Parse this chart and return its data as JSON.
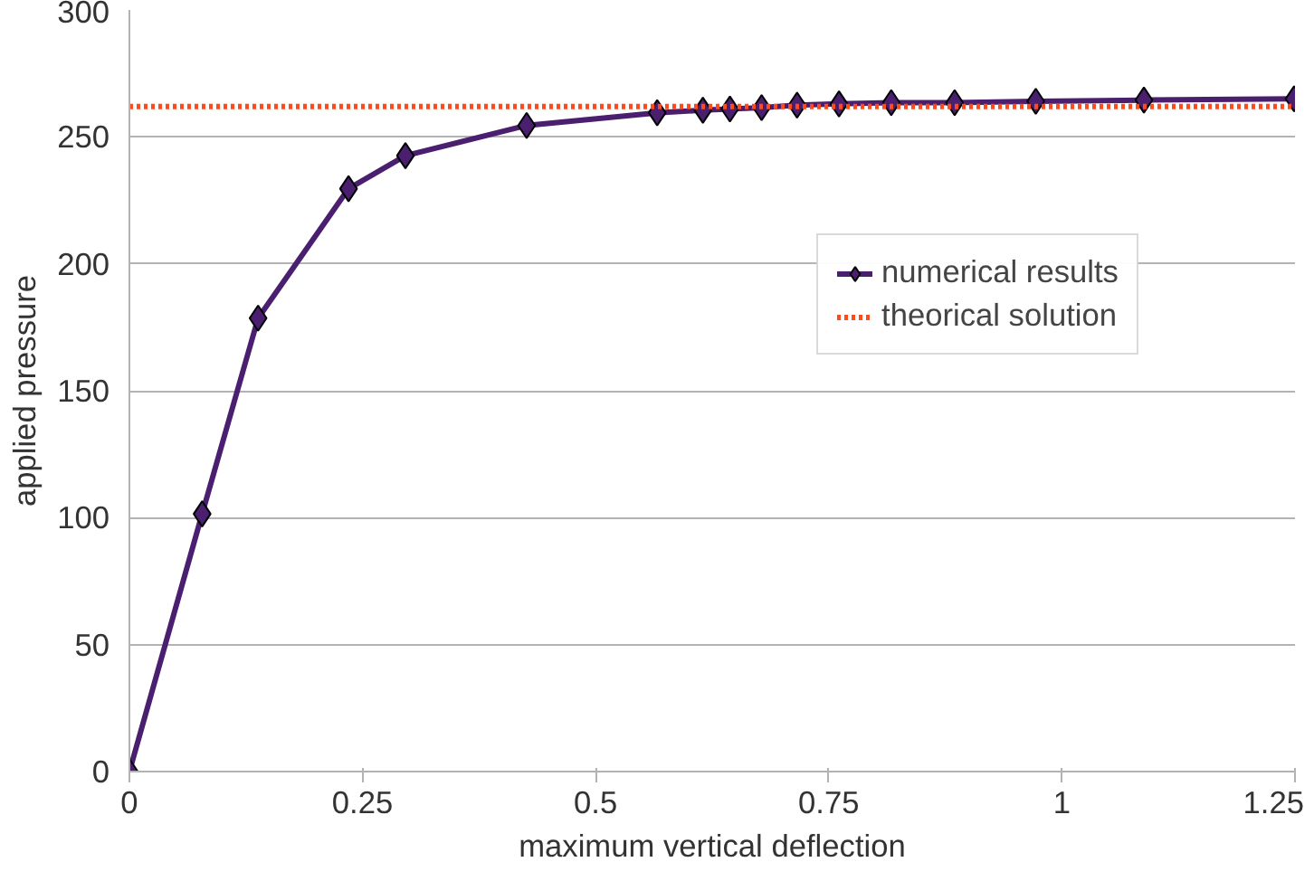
{
  "chart_data": {
    "type": "line",
    "xlabel": "maximum vertical deflection",
    "ylabel": "applied pressure",
    "xlim": [
      0,
      1.25
    ],
    "xticks": [
      0,
      {
        "value": 0.25,
        "label": "0.25"
      },
      {
        "value": 0.5,
        "label": "0.5"
      },
      {
        "value": 0.75,
        "label": "0.75"
      },
      1,
      {
        "value": 1.25,
        "label": "1.25"
      }
    ],
    "ylim": [
      0,
      300
    ],
    "yticks": [
      0,
      50,
      100,
      150,
      200,
      250,
      300
    ],
    "grid": "y",
    "legend": "center",
    "series": [
      {
        "name": "numerical results",
        "color": "#4b1f6f",
        "marker": "diamond",
        "line_style": "solid",
        "x": [
          0,
          0.078,
          0.138,
          0.235,
          0.296,
          0.426,
          0.566,
          0.615,
          0.644,
          0.678,
          0.716,
          0.761,
          0.817,
          0.885,
          0.972,
          1.088,
          1.249
        ],
        "values": [
          0,
          101.5,
          178.6,
          229.6,
          242.6,
          254.5,
          259.5,
          260.5,
          261,
          261.5,
          262.5,
          263,
          263.5,
          263.5,
          264,
          264.5,
          265
        ]
      },
      {
        "name": "theorical solution",
        "color": "#ff4a1c",
        "marker": "none",
        "line_style": "dotted",
        "x": [
          0,
          1.25
        ],
        "values": [
          262,
          262
        ]
      }
    ]
  }
}
